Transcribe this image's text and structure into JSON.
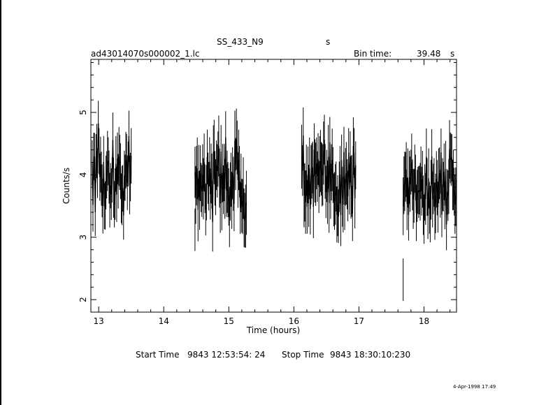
{
  "header": {
    "object": "SS_433_N9",
    "object_suffix": "s",
    "filename": "ad43014070s000002_1.lc",
    "bin_label": "Bin time:",
    "bin_value": "39.48",
    "bin_unit": "s"
  },
  "footer": {
    "start_label": "Start Time",
    "start_value": "9843 12:53:54: 24",
    "stop_label": "Stop Time",
    "stop_value": "9843 18:30:10:230",
    "print_date": "4-Apr-1998 17:49"
  },
  "chart_data": {
    "type": "scatter",
    "title": "SS_433_N9",
    "xlabel": "Time (hours)",
    "ylabel": "Counts/s",
    "xlim": [
      12.88,
      18.5
    ],
    "ylim": [
      1.8,
      5.85
    ],
    "xticks": [
      13,
      14,
      15,
      16,
      17,
      18
    ],
    "yticks": [
      2,
      3,
      4,
      5
    ],
    "grid": false,
    "segments": [
      {
        "start": 12.9,
        "end": 13.5,
        "n": 52,
        "mean": 3.95,
        "spread": 0.32,
        "err": 0.42
      },
      {
        "start": 14.48,
        "end": 15.27,
        "n": 68,
        "mean": 3.95,
        "spread": 0.32,
        "err": 0.45
      },
      {
        "start": 16.12,
        "end": 16.95,
        "n": 70,
        "mean": 3.9,
        "spread": 0.32,
        "err": 0.45
      },
      {
        "start": 17.68,
        "end": 18.5,
        "n": 70,
        "mean": 3.85,
        "spread": 0.32,
        "err": 0.42
      }
    ],
    "outliers": [
      {
        "x": 17.68,
        "y": 2.32,
        "err": 0.34
      },
      {
        "x": 14.48,
        "y": 3.12,
        "err": 0.34
      }
    ]
  }
}
